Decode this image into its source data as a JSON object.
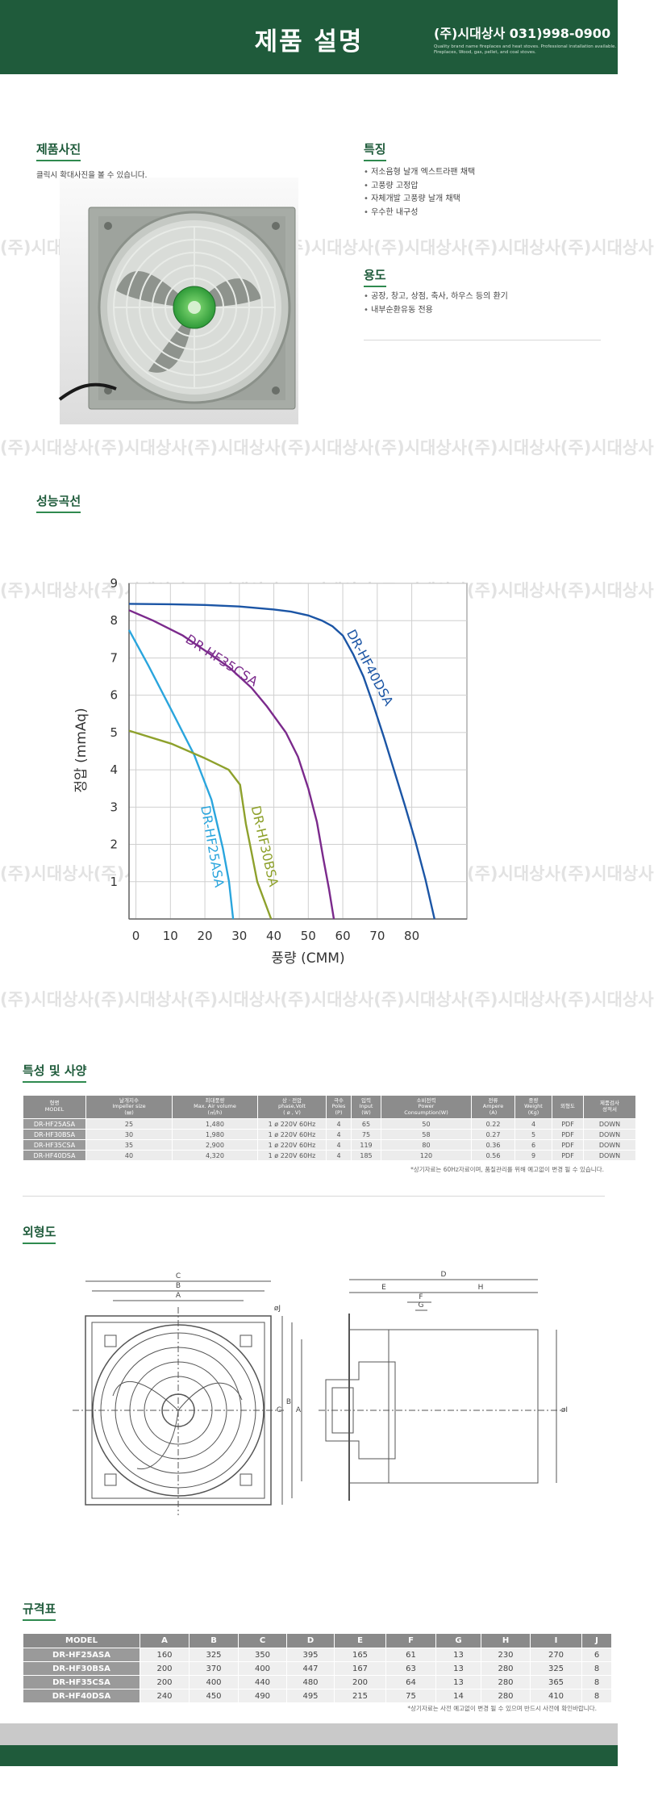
{
  "header": {
    "title": "제품 설명",
    "company": "(주)시대상사 031)998-0900",
    "tagline": [
      "Quality brand name fireplaces and heat stoves. Professional installation available.",
      "Fireplaces, Wood, gas, pellet, and coal stoves."
    ]
  },
  "watermark": "(주)시대상사",
  "photo": {
    "heading": "제품사진",
    "caption": "클릭시 확대사진을 볼 수 있습니다."
  },
  "features": {
    "heading": "특징",
    "items": [
      "저소음형 날개 엑스트라팬 채택",
      "고풍량 고정압",
      "자체개발 고풍량 날개 채택",
      "우수한 내구성"
    ]
  },
  "usage": {
    "heading": "용도",
    "items": [
      "공장, 창고, 상점, 축사, 하우스 등의 환기",
      "내부순환유동 전용"
    ]
  },
  "chart_data": {
    "type": "line",
    "heading": "성능곡선",
    "x_label": "풍량 (CMM)",
    "y_label": "정압 (mmAq)",
    "xlim": [
      -2,
      96
    ],
    "xticks": [
      0,
      10,
      20,
      30,
      40,
      50,
      60,
      70,
      80
    ],
    "ylim": [
      0,
      9
    ],
    "yticks": [
      1,
      2,
      3,
      4,
      5,
      6,
      7,
      8,
      9
    ],
    "grid": true,
    "series": [
      {
        "name": "DR-HF40DSA",
        "color": "#1b55a5",
        "x": [
          -2,
          10,
          20,
          30,
          40,
          45,
          50,
          54,
          57,
          60,
          63,
          66,
          69,
          72,
          75,
          78,
          81,
          84,
          86.6
        ],
        "values": [
          8.45,
          8.44,
          8.42,
          8.38,
          8.3,
          8.24,
          8.14,
          8.0,
          7.85,
          7.6,
          7.1,
          6.5,
          5.7,
          4.85,
          3.95,
          3.05,
          2.1,
          1.05,
          0
        ]
      },
      {
        "name": "DR-HF35CSA",
        "color": "#7b2a8c",
        "x": [
          -2,
          5,
          13.6,
          20,
          27,
          33.5,
          38,
          43.5,
          47,
          50,
          52.5,
          54.4,
          56,
          57.4
        ],
        "values": [
          8.28,
          8.0,
          7.6,
          7.2,
          6.75,
          6.2,
          5.7,
          5.0,
          4.35,
          3.5,
          2.6,
          1.6,
          0.8,
          0
        ]
      },
      {
        "name": "DR-HF25ASA",
        "color": "#2aa5dd",
        "x": [
          -2,
          3.6,
          10.3,
          16.9,
          21.9,
          25.2,
          27,
          28.2
        ],
        "values": [
          7.75,
          6.8,
          5.6,
          4.4,
          3.2,
          1.9,
          1.0,
          0
        ]
      },
      {
        "name": "DR-HF30BSA",
        "color": "#8ea12c",
        "x": [
          -2,
          10.3,
          20.2,
          26.9,
          30.2,
          31.9,
          33.5,
          35.2,
          39.2
        ],
        "values": [
          5.05,
          4.7,
          4.3,
          4.0,
          3.6,
          2.55,
          1.8,
          1.0,
          0
        ]
      }
    ]
  },
  "spec_table": {
    "heading": "특성 및 사양",
    "columns": [
      "형명\nMODEL",
      "날개지수\nImpeller size\n(㎜)",
      "최대풍량\nMax. Air volume\n(㎥/h)",
      "상 · 전압\nphase,Volt\n( ø , V)",
      "극수\nPoles\n(P)",
      "입력\nInput\n(W)",
      "소비전력\nPower\nConsumption(W)",
      "전류\nAmpere\n(A)",
      "중량\nWeight\n(Kg)",
      "외형도",
      "제품검사\n성적서"
    ],
    "rows": [
      [
        "DR-HF25ASA",
        "25",
        "1,480",
        "1 ø 220V 60Hz",
        "4",
        "65",
        "50",
        "0.22",
        "4",
        "PDF",
        "DOWN"
      ],
      [
        "DR-HF30BSA",
        "30",
        "1,980",
        "1 ø 220V 60Hz",
        "4",
        "75",
        "58",
        "0.27",
        "5",
        "PDF",
        "DOWN"
      ],
      [
        "DR-HF35CSA",
        "35",
        "2,900",
        "1 ø 220V 60Hz",
        "4",
        "119",
        "80",
        "0.36",
        "6",
        "PDF",
        "DOWN"
      ],
      [
        "DR-HF40DSA",
        "40",
        "4,320",
        "1 ø 220V 60Hz",
        "4",
        "185",
        "120",
        "0.56",
        "9",
        "PDF",
        "DOWN"
      ]
    ],
    "note": "*상기자료는 60Hz자료이며, 품질관리를 위해 예고없이 변경 될 수 있습니다."
  },
  "drawing": {
    "heading": "외형도",
    "labels": [
      "C",
      "B",
      "A",
      "øJ",
      "C",
      "B",
      "A",
      "D",
      "E",
      "H",
      "F",
      "G",
      "øI"
    ]
  },
  "dim_table": {
    "heading": "규격표",
    "columns": [
      "MODEL",
      "A",
      "B",
      "C",
      "D",
      "E",
      "F",
      "G",
      "H",
      "I",
      "J"
    ],
    "rows": [
      [
        "DR-HF25ASA",
        "160",
        "325",
        "350",
        "395",
        "165",
        "61",
        "13",
        "230",
        "270",
        "6"
      ],
      [
        "DR-HF30BSA",
        "200",
        "370",
        "400",
        "447",
        "167",
        "63",
        "13",
        "280",
        "325",
        "8"
      ],
      [
        "DR-HF35CSA",
        "200",
        "400",
        "440",
        "480",
        "200",
        "64",
        "13",
        "280",
        "365",
        "8"
      ],
      [
        "DR-HF40DSA",
        "240",
        "450",
        "490",
        "495",
        "215",
        "75",
        "14",
        "280",
        "410",
        "8"
      ]
    ],
    "note": "*상기자료는 사전 예고없이 변경 될 수 있으며 반드시 사전에 확인바랍니다."
  }
}
